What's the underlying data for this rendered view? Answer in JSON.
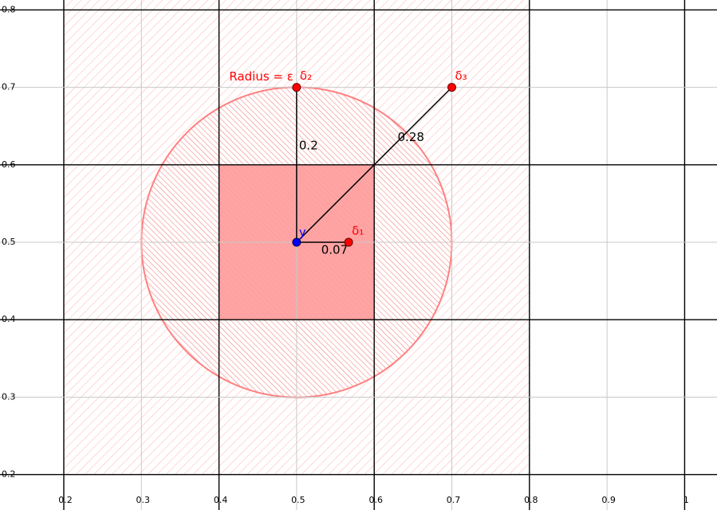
{
  "chart_data": {
    "type": "geometry",
    "xlim": [
      0.1178,
      1.0417
    ],
    "ylim": [
      0.1543,
      0.8128
    ],
    "xticks": [
      0.2,
      0.3,
      0.4,
      0.5,
      0.6,
      0.7,
      0.8,
      0.9,
      1
    ],
    "yticks": [
      0.2,
      0.3,
      0.4,
      0.5,
      0.6,
      0.7,
      0.8
    ],
    "grid": true,
    "color": "#ff0000",
    "neighborhood": [
      0.2,
      0.8
    ],
    "box": [
      0.4,
      0.6
    ],
    "radius": 0.2,
    "radius_label": "Radius = ε",
    "center": {
      "label": "y",
      "x": 0.5,
      "y": 0.5,
      "color": "#0000ff"
    },
    "points": [
      {
        "label": "δ₁",
        "x": 0.567,
        "y": 0.5,
        "distance": 0.07
      },
      {
        "label": "δ₂",
        "x": 0.5,
        "y": 0.7,
        "distance": 0.2
      },
      {
        "label": "δ₃",
        "x": 0.7,
        "y": 0.7,
        "distance": 0.28
      }
    ]
  }
}
